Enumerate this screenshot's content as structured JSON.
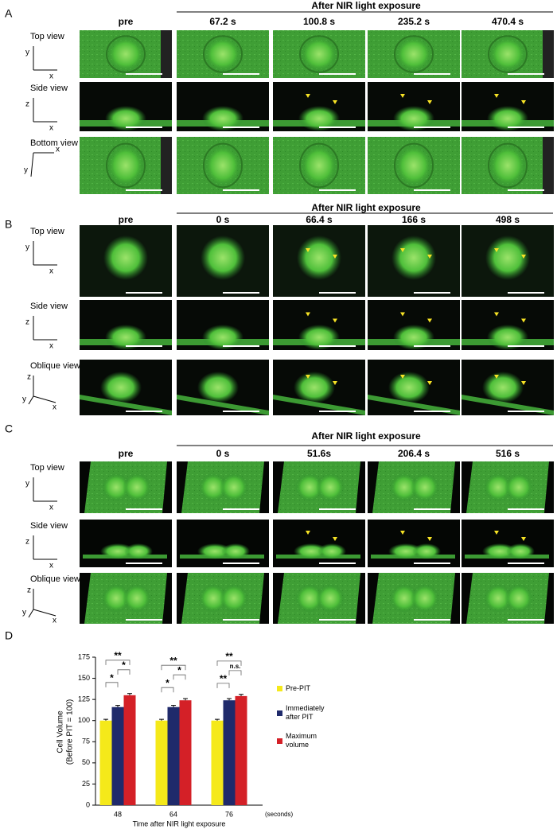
{
  "panels": [
    {
      "label": "A",
      "header": "After NIR light exposure",
      "columns": [
        "pre",
        "67.2 s",
        "100.8 s",
        "235.2 s",
        "470.4 s"
      ],
      "rows": [
        {
          "label": "Top view",
          "axes": [
            "y",
            "x"
          ]
        },
        {
          "label": "Side view",
          "axes": [
            "z",
            "x"
          ]
        },
        {
          "label": "Bottom view",
          "axes": [
            "x",
            "y"
          ]
        }
      ]
    },
    {
      "label": "B",
      "header": "After NIR light exposure",
      "columns": [
        "pre",
        "0 s",
        "66.4 s",
        "166 s",
        "498 s"
      ],
      "rows": [
        {
          "label": "Top view",
          "axes": [
            "y",
            "x"
          ]
        },
        {
          "label": "Side view",
          "axes": [
            "z",
            "x"
          ]
        },
        {
          "label": "Oblique view",
          "axes": [
            "z",
            "y",
            "x"
          ]
        }
      ]
    },
    {
      "label": "C",
      "header": "After NIR light exposure",
      "columns": [
        "pre",
        "0 s",
        "51.6s",
        "206.4 s",
        "516 s"
      ],
      "rows": [
        {
          "label": "Top view",
          "axes": [
            "y",
            "x"
          ]
        },
        {
          "label": "Side view",
          "axes": [
            "z",
            "x"
          ]
        },
        {
          "label": "Oblique view",
          "axes": [
            "z",
            "y",
            "x"
          ]
        }
      ]
    }
  ],
  "chart_data": {
    "type": "bar",
    "panel_label": "D",
    "y_label": [
      "Cell  Volume",
      "(Before PIT = 100)"
    ],
    "x_label": "Time after NIR light exposure",
    "x_unit": "(seconds)",
    "categories": [
      "48",
      "64",
      "76"
    ],
    "series": [
      {
        "name": "Pre-PIT",
        "color": "#f5e91a",
        "values": [
          100,
          100,
          100
        ],
        "errors": [
          1.5,
          1.5,
          1.5
        ]
      },
      {
        "name": "Immediately after PIT",
        "color": "#1f2a6b",
        "values": [
          116,
          116,
          124
        ],
        "errors": [
          2,
          2,
          2
        ]
      },
      {
        "name": "Maximum volume",
        "color": "#d42027",
        "values": [
          130,
          124,
          129
        ],
        "errors": [
          2,
          2,
          2
        ]
      }
    ],
    "significance": [
      [
        "*",
        "*",
        "**"
      ],
      [
        "*",
        "*",
        "**"
      ],
      [
        "**",
        "n.s.",
        "**"
      ]
    ],
    "ylim": [
      0,
      175
    ],
    "yticks": [
      0,
      25,
      50,
      75,
      100,
      125,
      150,
      175
    ]
  }
}
